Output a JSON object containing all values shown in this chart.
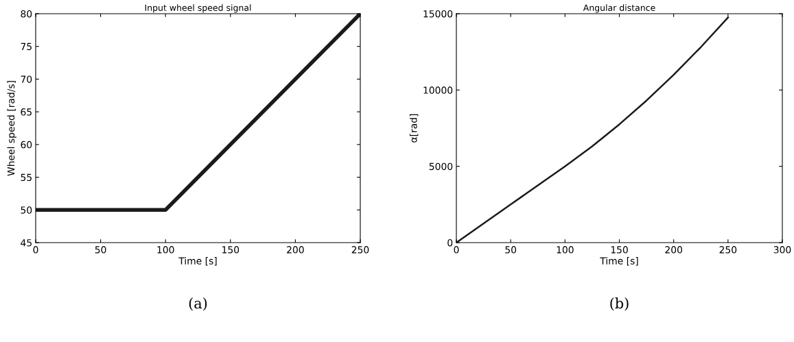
{
  "chart_data": [
    {
      "type": "line",
      "title": "Input wheel speed signal",
      "xlabel": "Time [s]",
      "ylabel": "Wheel speed [rad/s]",
      "x": [
        0,
        100,
        250
      ],
      "series": [
        {
          "color": "#1a1a1a",
          "values": [
            50,
            50,
            80
          ]
        }
      ],
      "xlim": [
        0,
        250
      ],
      "xticks": [
        0,
        50,
        100,
        150,
        200,
        250
      ],
      "ylim": [
        45,
        80
      ],
      "yticks": [
        45,
        50,
        55,
        60,
        65,
        70,
        75,
        80
      ],
      "grid": false,
      "legend": false,
      "marker": "none",
      "line_style": "solid",
      "annotations": [
        "(a)"
      ]
    },
    {
      "type": "line",
      "title": "Angular distance",
      "xlabel": "Time [s]",
      "ylabel": "α[rad]",
      "x": [
        0,
        50,
        100,
        125,
        150,
        175,
        200,
        225,
        250
      ],
      "series": [
        {
          "color": "#1a1a1a",
          "values": [
            0,
            2500,
            5000,
            6310,
            7750,
            9310,
            11000,
            12810,
            14750
          ]
        }
      ],
      "xlim": [
        0,
        300
      ],
      "xticks": [
        0,
        50,
        100,
        150,
        200,
        250,
        300
      ],
      "ylim": [
        0,
        15000
      ],
      "yticks": [
        0,
        5000,
        10000,
        15000
      ],
      "grid": false,
      "legend": false,
      "marker": "none",
      "line_style": "solid",
      "annotations": [
        "(b)"
      ]
    }
  ]
}
